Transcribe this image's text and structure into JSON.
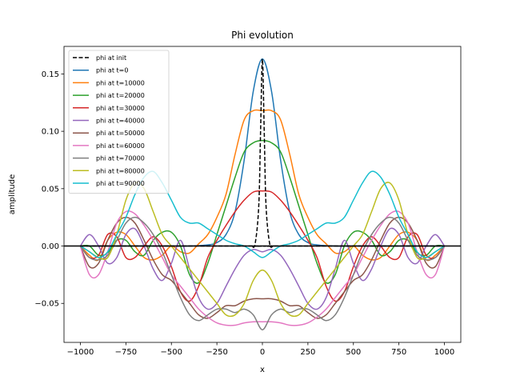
{
  "chart_data": {
    "type": "line",
    "title": "Phi evolution",
    "xlabel": "x",
    "ylabel": "amplitude",
    "xlim": [
      -1090,
      1090
    ],
    "ylim": [
      -0.084,
      0.174
    ],
    "xticks": [
      -1000,
      -750,
      -500,
      -250,
      0,
      250,
      500,
      750,
      1000
    ],
    "xtick_labels": [
      "−1000",
      "−750",
      "−500",
      "−250",
      "0",
      "250",
      "500",
      "750",
      "1000"
    ],
    "yticks": [
      -0.05,
      0.0,
      0.05,
      0.1,
      0.15
    ],
    "ytick_labels": [
      "−0.05",
      "0.00",
      "0.05",
      "0.10",
      "0.15"
    ],
    "zero_line": true,
    "grid": false,
    "legend_position": "top-left",
    "series": [
      {
        "name": "phi at init",
        "color": "#000000",
        "dash": true,
        "x": [
          -1000,
          -80,
          -60,
          -40,
          -20,
          -10,
          0,
          10,
          20,
          40,
          60,
          80,
          1000
        ],
        "y": [
          0,
          0,
          0,
          0.002,
          0.035,
          0.1,
          0.163,
          0.1,
          0.035,
          0.002,
          0,
          0,
          0
        ]
      },
      {
        "name": "phi at t=0",
        "color": "#1f77b4",
        "x": [
          -1000,
          -900,
          -800,
          -700,
          -600,
          -500,
          -400,
          -300,
          -250,
          -200,
          -150,
          -100,
          -50,
          0,
          50,
          100,
          150,
          200,
          250,
          300,
          400,
          500,
          600,
          700,
          800,
          900,
          1000
        ],
        "y": [
          0,
          0,
          0,
          0,
          0,
          0,
          0,
          0.001,
          0.003,
          0.01,
          0.03,
          0.075,
          0.135,
          0.163,
          0.135,
          0.075,
          0.03,
          0.01,
          0.003,
          0.001,
          0,
          0,
          0,
          0,
          0,
          0,
          0
        ]
      },
      {
        "name": "phi at t=10000",
        "color": "#ff7f0e",
        "x": [
          -1000,
          -950,
          -900,
          -850,
          -800,
          -750,
          -700,
          -650,
          -600,
          -550,
          -500,
          -450,
          -400,
          -350,
          -300,
          -250,
          -200,
          -150,
          -100,
          -50,
          0,
          50,
          100,
          150,
          200,
          250,
          300,
          350,
          400,
          450,
          500,
          550,
          600,
          650,
          700,
          750,
          800,
          850,
          900,
          950,
          1000
        ],
        "y": [
          0,
          -0.008,
          -0.012,
          0.005,
          0.012,
          0.01,
          0,
          -0.01,
          -0.012,
          -0.008,
          0,
          -0.005,
          -0.006,
          0.002,
          0.01,
          0.025,
          0.045,
          0.08,
          0.11,
          0.118,
          0.118,
          0.118,
          0.11,
          0.08,
          0.045,
          0.025,
          0.01,
          0.002,
          -0.006,
          -0.005,
          0,
          -0.008,
          -0.012,
          -0.01,
          0,
          0.01,
          0.012,
          0.005,
          -0.012,
          -0.008,
          0
        ]
      },
      {
        "name": "phi at t=20000",
        "color": "#2ca02c",
        "x": [
          -1000,
          -950,
          -900,
          -850,
          -800,
          -750,
          -700,
          -650,
          -600,
          -550,
          -500,
          -450,
          -400,
          -350,
          -300,
          -250,
          -200,
          -150,
          -100,
          -50,
          0,
          50,
          100,
          150,
          200,
          250,
          300,
          350,
          400,
          450,
          500,
          550,
          600,
          650,
          700,
          750,
          800,
          850,
          900,
          950,
          1000
        ],
        "y": [
          0,
          0,
          -0.008,
          -0.006,
          0.005,
          0.005,
          -0.005,
          -0.008,
          0.005,
          0.012,
          0.012,
          0,
          -0.025,
          -0.032,
          -0.015,
          0.01,
          0.035,
          0.06,
          0.082,
          0.09,
          0.092,
          0.09,
          0.082,
          0.06,
          0.035,
          0.01,
          -0.015,
          -0.032,
          -0.025,
          0,
          0.012,
          0.012,
          0.005,
          -0.008,
          -0.005,
          0.005,
          0.005,
          -0.006,
          -0.008,
          0,
          0
        ]
      },
      {
        "name": "phi at t=30000",
        "color": "#d62728",
        "x": [
          -1000,
          -950,
          -900,
          -850,
          -800,
          -750,
          -700,
          -650,
          -600,
          -550,
          -500,
          -450,
          -400,
          -350,
          -300,
          -250,
          -200,
          -150,
          -100,
          -50,
          0,
          50,
          100,
          150,
          200,
          250,
          300,
          350,
          400,
          450,
          500,
          550,
          600,
          650,
          700,
          750,
          800,
          850,
          900,
          950,
          1000
        ],
        "y": [
          0,
          -0.01,
          -0.008,
          0.01,
          0.008,
          -0.01,
          -0.01,
          0,
          0.008,
          0,
          -0.018,
          -0.04,
          -0.048,
          -0.035,
          -0.01,
          0.005,
          0.018,
          0.03,
          0.04,
          0.047,
          0.048,
          0.047,
          0.04,
          0.03,
          0.018,
          0.005,
          -0.01,
          -0.035,
          -0.048,
          -0.04,
          -0.018,
          0,
          0.008,
          0,
          -0.01,
          -0.01,
          0.008,
          0.01,
          -0.008,
          -0.01,
          0
        ]
      },
      {
        "name": "phi at t=40000",
        "color": "#9467bd",
        "x": [
          -1000,
          -950,
          -900,
          -850,
          -800,
          -750,
          -700,
          -650,
          -600,
          -550,
          -500,
          -450,
          -400,
          -350,
          -300,
          -250,
          -200,
          -150,
          -100,
          -50,
          0,
          50,
          100,
          150,
          200,
          250,
          300,
          350,
          400,
          450,
          500,
          550,
          600,
          650,
          700,
          750,
          800,
          850,
          900,
          950,
          1000
        ],
        "y": [
          0,
          0.01,
          0,
          -0.015,
          -0.01,
          0.01,
          0.015,
          0,
          -0.02,
          -0.03,
          -0.015,
          0.005,
          -0.02,
          -0.045,
          -0.055,
          -0.05,
          -0.035,
          -0.02,
          -0.008,
          -0.003,
          -0.005,
          -0.003,
          -0.008,
          -0.02,
          -0.035,
          -0.05,
          -0.055,
          -0.045,
          -0.02,
          0.005,
          -0.015,
          -0.03,
          -0.02,
          0,
          0.015,
          0.01,
          -0.01,
          -0.015,
          0,
          0.01,
          0
        ]
      },
      {
        "name": "phi at t=50000",
        "color": "#8c564b",
        "x": [
          -1000,
          -950,
          -900,
          -850,
          -800,
          -750,
          -700,
          -650,
          -600,
          -550,
          -500,
          -450,
          -400,
          -350,
          -300,
          -250,
          -200,
          -150,
          -100,
          -50,
          0,
          50,
          100,
          150,
          200,
          250,
          300,
          350,
          400,
          450,
          500,
          550,
          600,
          650,
          700,
          750,
          800,
          850,
          900,
          950,
          1000
        ],
        "y": [
          0,
          -0.018,
          -0.015,
          0.005,
          0.02,
          0.025,
          0.02,
          0.005,
          -0.012,
          -0.025,
          -0.03,
          -0.04,
          -0.05,
          -0.06,
          -0.063,
          -0.058,
          -0.052,
          -0.052,
          -0.048,
          -0.046,
          -0.046,
          -0.046,
          -0.048,
          -0.052,
          -0.052,
          -0.058,
          -0.063,
          -0.06,
          -0.05,
          -0.04,
          -0.03,
          -0.025,
          -0.012,
          0.005,
          0.02,
          0.025,
          0.02,
          0.005,
          -0.015,
          -0.018,
          0
        ]
      },
      {
        "name": "phi at t=60000",
        "color": "#e377c2",
        "x": [
          -1000,
          -950,
          -900,
          -850,
          -800,
          -750,
          -700,
          -650,
          -600,
          -550,
          -500,
          -450,
          -400,
          -350,
          -300,
          -250,
          -200,
          -150,
          -100,
          -50,
          0,
          50,
          100,
          150,
          200,
          250,
          300,
          350,
          400,
          450,
          500,
          550,
          600,
          650,
          700,
          750,
          800,
          850,
          900,
          950,
          1000
        ],
        "y": [
          0,
          -0.025,
          -0.025,
          -0.005,
          0.02,
          0.03,
          0.028,
          0.018,
          0.005,
          -0.01,
          -0.025,
          -0.035,
          -0.045,
          -0.055,
          -0.062,
          -0.067,
          -0.069,
          -0.069,
          -0.067,
          -0.066,
          -0.066,
          -0.066,
          -0.067,
          -0.069,
          -0.069,
          -0.067,
          -0.062,
          -0.055,
          -0.045,
          -0.035,
          -0.025,
          -0.01,
          0.005,
          0.018,
          0.028,
          0.03,
          0.02,
          -0.005,
          -0.025,
          -0.025,
          0
        ]
      },
      {
        "name": "phi at t=70000",
        "color": "#7f7f7f",
        "x": [
          -1000,
          -950,
          -900,
          -850,
          -800,
          -750,
          -700,
          -650,
          -600,
          -550,
          -500,
          -450,
          -400,
          -350,
          -300,
          -250,
          -200,
          -150,
          -100,
          -50,
          0,
          50,
          100,
          150,
          200,
          250,
          300,
          350,
          400,
          450,
          500,
          550,
          600,
          650,
          700,
          750,
          800,
          850,
          900,
          950,
          1000
        ],
        "y": [
          0,
          -0.01,
          -0.012,
          -0.008,
          0.005,
          0.02,
          0.025,
          0.02,
          0.01,
          -0.005,
          -0.025,
          -0.045,
          -0.06,
          -0.065,
          -0.06,
          -0.055,
          -0.055,
          -0.058,
          -0.055,
          -0.06,
          -0.073,
          -0.06,
          -0.055,
          -0.058,
          -0.055,
          -0.055,
          -0.06,
          -0.065,
          -0.06,
          -0.045,
          -0.025,
          -0.005,
          0.01,
          0.02,
          0.025,
          0.02,
          0.005,
          -0.008,
          -0.012,
          -0.01,
          0
        ]
      },
      {
        "name": "phi at t=80000",
        "color": "#bcbd22",
        "x": [
          -1000,
          -950,
          -900,
          -850,
          -800,
          -750,
          -700,
          -650,
          -600,
          -550,
          -500,
          -450,
          -400,
          -350,
          -300,
          -250,
          -200,
          -150,
          -100,
          -50,
          0,
          50,
          100,
          150,
          200,
          250,
          300,
          350,
          400,
          450,
          500,
          550,
          600,
          650,
          700,
          750,
          800,
          850,
          900,
          950,
          1000
        ],
        "y": [
          0,
          -0.005,
          -0.01,
          -0.01,
          0.01,
          0.04,
          0.055,
          0.05,
          0.03,
          0.01,
          0,
          -0.01,
          -0.02,
          -0.03,
          -0.04,
          -0.05,
          -0.06,
          -0.06,
          -0.05,
          -0.03,
          -0.021,
          -0.03,
          -0.05,
          -0.06,
          -0.06,
          -0.05,
          -0.04,
          -0.03,
          -0.02,
          -0.01,
          0,
          0.01,
          0.03,
          0.05,
          0.055,
          0.04,
          0.01,
          -0.01,
          -0.01,
          -0.005,
          0
        ]
      },
      {
        "name": "phi at t=90000",
        "color": "#17becf",
        "x": [
          -1000,
          -950,
          -900,
          -850,
          -800,
          -750,
          -700,
          -650,
          -600,
          -550,
          -500,
          -450,
          -400,
          -350,
          -300,
          -250,
          -200,
          -150,
          -100,
          -50,
          0,
          50,
          100,
          150,
          200,
          250,
          300,
          350,
          400,
          450,
          500,
          550,
          600,
          650,
          700,
          750,
          800,
          850,
          900,
          950,
          1000
        ],
        "y": [
          0,
          -0.005,
          -0.01,
          -0.005,
          0.01,
          0.025,
          0.045,
          0.06,
          0.065,
          0.055,
          0.04,
          0.025,
          0.02,
          0.02,
          0.015,
          0.01,
          0.005,
          0.002,
          0,
          -0.005,
          -0.01,
          -0.005,
          0,
          0.002,
          0.005,
          0.01,
          0.015,
          0.02,
          0.02,
          0.025,
          0.04,
          0.055,
          0.065,
          0.06,
          0.045,
          0.025,
          0.01,
          -0.005,
          -0.01,
          -0.005,
          0
        ]
      }
    ]
  }
}
